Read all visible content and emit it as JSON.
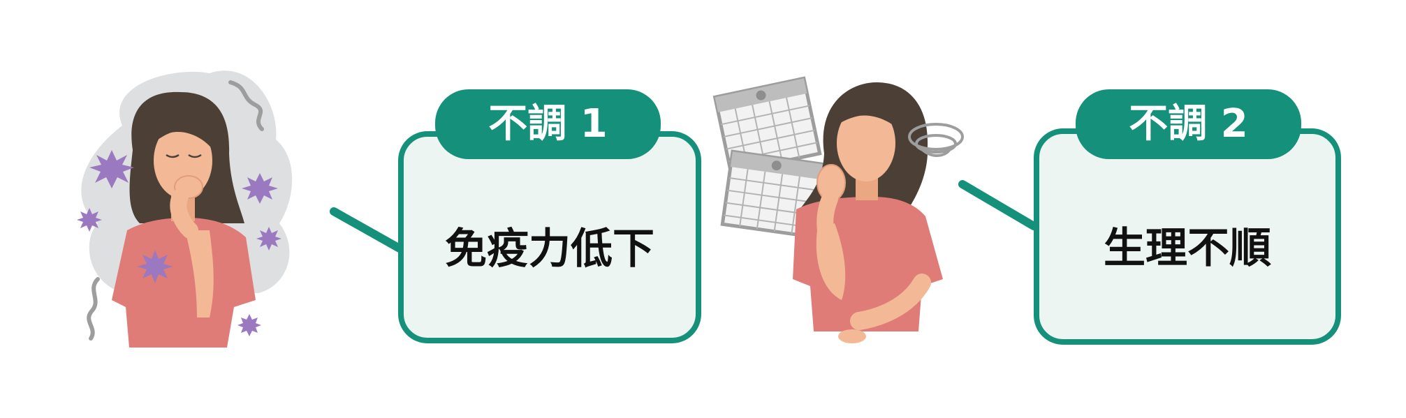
{
  "colors": {
    "accent": "#14907b",
    "box_fill": "#edf5f2",
    "shirt": "#df7c78",
    "skin": "#f3b996",
    "hair": "#4b3f36",
    "virus": "#9b79c0"
  },
  "panels": [
    {
      "tab_label": "不調 1",
      "main_label": "免疫力低下"
    },
    {
      "tab_label": "不調 2",
      "main_label": "生理不順"
    }
  ],
  "illustrations": [
    {
      "icon": "coughing-woman-icon"
    },
    {
      "icon": "calendar-icon"
    },
    {
      "icon": "troubled-woman-icon"
    }
  ]
}
